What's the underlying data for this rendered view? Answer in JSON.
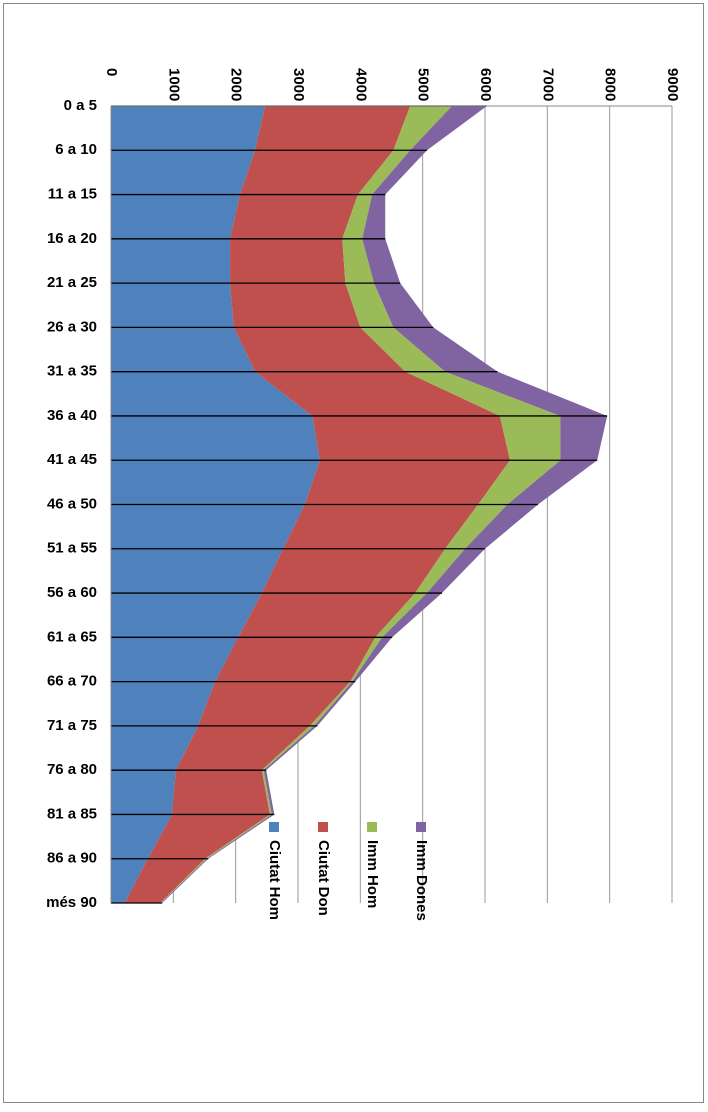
{
  "chart_data": {
    "type": "stacked_area",
    "categories": [
      "0 a 5",
      "6 a 10",
      "11 a 15",
      "16 a 20",
      "21 a 25",
      "26 a 30",
      "31 a 35",
      "36 a 40",
      "41 a 45",
      "46 a 50",
      "51 a 55",
      "56 a 60",
      "61 a 65",
      "66 a 70",
      "71 a 75",
      "76 a 80",
      "81 a 85",
      "86 a 90",
      "més 90"
    ],
    "series": [
      {
        "name": "Ciutat Hom",
        "color": "#4f81bd",
        "values": [
          2470,
          2310,
          2070,
          1910,
          1910,
          1970,
          2310,
          3230,
          3350,
          3110,
          2760,
          2420,
          2040,
          1670,
          1400,
          1040,
          980,
          590,
          220
        ]
      },
      {
        "name": "Ciutat Don",
        "color": "#c0504d",
        "values": [
          2330,
          2220,
          1890,
          1800,
          1850,
          2030,
          2410,
          3010,
          3050,
          2780,
          2600,
          2460,
          2200,
          2170,
          1790,
          1380,
          1570,
          920,
          570
        ]
      },
      {
        "name": "Imm Hom",
        "color": "#9bbb59",
        "values": [
          670,
          270,
          230,
          320,
          460,
          530,
          640,
          970,
          810,
          470,
          320,
          190,
          110,
          30,
          70,
          30,
          30,
          30,
          10
        ]
      },
      {
        "name": "Imm Dones",
        "color": "#8064a2",
        "values": [
          560,
          270,
          210,
          370,
          420,
          640,
          840,
          750,
          590,
          490,
          320,
          240,
          160,
          50,
          50,
          40,
          40,
          20,
          20
        ]
      }
    ],
    "ylim": [
      0,
      9000
    ],
    "yticks": [
      0,
      1000,
      2000,
      3000,
      4000,
      5000,
      6000,
      7000,
      8000,
      9000
    ],
    "grid": true
  }
}
